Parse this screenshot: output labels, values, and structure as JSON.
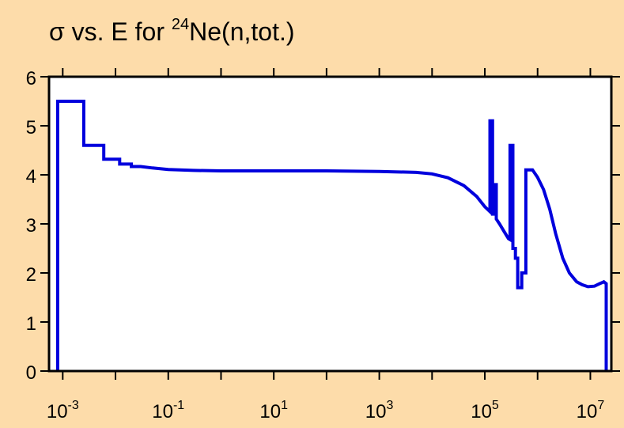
{
  "chart_data": {
    "type": "line",
    "title": {
      "prefix": "σ vs. E for ",
      "isotope_mass": "24",
      "suffix": "Ne(n,tot.)"
    },
    "xlabel": "",
    "ylabel": "",
    "x_scale": "log",
    "xlim": [
      0.00055,
      25000000
    ],
    "ylim": [
      0,
      6
    ],
    "x_ticks": [
      {
        "base": "10",
        "exp": "-3",
        "value": 0.001
      },
      {
        "base": "10",
        "exp": "-1",
        "value": 0.1
      },
      {
        "base": "10",
        "exp": "1",
        "value": 10
      },
      {
        "base": "10",
        "exp": "3",
        "value": 1000
      },
      {
        "base": "10",
        "exp": "5",
        "value": 100000
      },
      {
        "base": "10",
        "exp": "7",
        "value": 10000000
      }
    ],
    "y_ticks": [
      "0",
      "1",
      "2",
      "3",
      "4",
      "5",
      "6"
    ],
    "grid": false,
    "line_color": "#0000dd",
    "frame_color": "#000000",
    "background_color": "#fddcaa",
    "plot_background": "#ffffff",
    "series": [
      {
        "step": true,
        "points": [
          [
            0.0008,
            0
          ],
          [
            0.0008,
            5.5
          ],
          [
            0.0025,
            5.5
          ],
          [
            0.0025,
            4.6
          ],
          [
            0.006,
            4.6
          ],
          [
            0.006,
            4.32
          ],
          [
            0.012,
            4.32
          ],
          [
            0.012,
            4.22
          ],
          [
            0.02,
            4.22
          ],
          [
            0.02,
            4.17
          ],
          [
            0.03,
            4.17
          ],
          [
            0.05,
            4.14
          ],
          [
            0.1,
            4.11
          ],
          [
            0.3,
            4.09
          ],
          [
            1,
            4.08
          ],
          [
            10,
            4.08
          ],
          [
            100,
            4.08
          ],
          [
            1000,
            4.07
          ],
          [
            5000,
            4.05
          ],
          [
            10000,
            4.02
          ],
          [
            20000,
            3.94
          ],
          [
            40000,
            3.78
          ],
          [
            70000,
            3.56
          ],
          [
            100000,
            3.35
          ],
          [
            125000,
            3.25
          ],
          [
            125000,
            5.1
          ],
          [
            140000,
            5.1
          ],
          [
            140000,
            3.2
          ],
          [
            155000,
            3.2
          ],
          [
            155000,
            3.8
          ],
          [
            165000,
            3.8
          ],
          [
            165000,
            3.1
          ],
          [
            190000,
            3.0
          ],
          [
            230000,
            2.85
          ],
          [
            280000,
            2.7
          ],
          [
            300000,
            2.68
          ],
          [
            300000,
            4.6
          ],
          [
            340000,
            4.6
          ],
          [
            340000,
            2.5
          ],
          [
            380000,
            2.5
          ],
          [
            380000,
            2.3
          ],
          [
            420000,
            2.3
          ],
          [
            420000,
            1.7
          ],
          [
            500000,
            1.7
          ],
          [
            500000,
            2.0
          ],
          [
            600000,
            2.0
          ],
          [
            600000,
            4.1
          ],
          [
            800000,
            4.1
          ],
          [
            1000000,
            3.95
          ],
          [
            1300000,
            3.7
          ],
          [
            1700000,
            3.3
          ],
          [
            2200000,
            2.8
          ],
          [
            3000000,
            2.3
          ],
          [
            4000000,
            2.0
          ],
          [
            5500000,
            1.82
          ],
          [
            7000000,
            1.76
          ],
          [
            9000000,
            1.72
          ],
          [
            12000000,
            1.73
          ],
          [
            15000000,
            1.78
          ],
          [
            18000000,
            1.82
          ],
          [
            20000000,
            1.78
          ],
          [
            20000000,
            0
          ]
        ]
      }
    ]
  }
}
